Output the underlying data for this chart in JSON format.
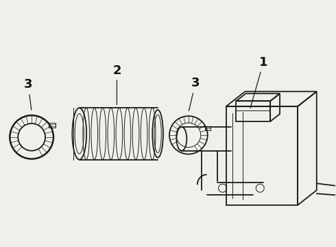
{
  "bg_color": "#f0f0eb",
  "line_color": "#1a1a1a",
  "label_color": "#111111",
  "figsize": [
    4.9,
    3.6
  ],
  "dpi": 100,
  "lw_main": 1.3,
  "lw_thin": 0.7,
  "lw_thick": 1.8,
  "label_fs": 13
}
